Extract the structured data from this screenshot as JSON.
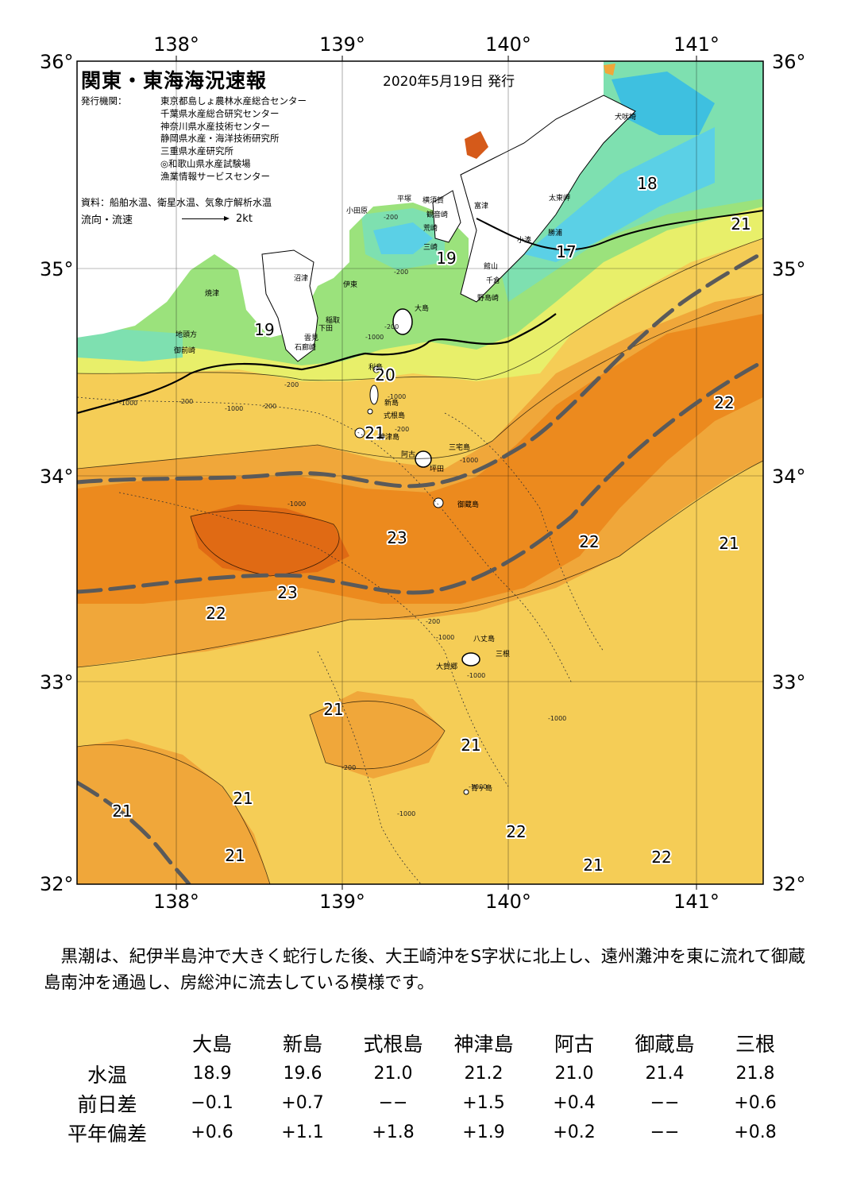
{
  "title": "関東・東海海況速報",
  "issue_date": "2020年5月19日 発行",
  "agencies_label": "発行機関：",
  "agencies": [
    "東京都島しょ農林水産総合センター",
    "千葉県水産総合研究センター",
    "神奈川県水産技術センター",
    "静岡県水産・海洋技術研究所",
    "三重県水産研究所",
    "◎和歌山県水産試験場",
    "漁業情報サービスセンター"
  ],
  "source": "資料：船舶水温、衛星水温、気象庁解析水温",
  "flow_label": "流向・流速",
  "flow_scale": "2kt",
  "lon_labels": [
    "138°",
    "139°",
    "140°",
    "141°"
  ],
  "lat_labels": [
    "36°",
    "35°",
    "34°",
    "33°",
    "32°"
  ],
  "colors": {
    "t17": "#5bd0e6",
    "t18": "#7ee0b0",
    "t19": "#9be27c",
    "t20": "#e8ef6a",
    "t21": "#f5cd56",
    "t22": "#f0a73a",
    "t23": "#ec8a1e",
    "t24": "#e06a14",
    "land": "#ffffff",
    "kuroshio": "#5a5a5a"
  },
  "isotherm_labels": [
    "18",
    "21",
    "17",
    "19",
    "19",
    "20",
    "21",
    "22",
    "23",
    "22",
    "21",
    "23",
    "22",
    "21",
    "21",
    "21",
    "22",
    "21",
    "21",
    "22",
    "21"
  ],
  "place_names": [
    "犬吠埼",
    "太東岬",
    "勝浦",
    "小湊",
    "館山",
    "千倉",
    "野島崎",
    "富津",
    "横須賀",
    "観音崎",
    "平塚",
    "小田原",
    "荒崎",
    "三崎",
    "大島",
    "沼津",
    "伊東",
    "焼津",
    "稲取",
    "下田",
    "雲見",
    "石廊崎",
    "地頭方",
    "御前崎",
    "利島",
    "新島",
    "式根島",
    "神津島",
    "三宅島",
    "阿古",
    "坪田",
    "御蔵島",
    "八丈島",
    "三根",
    "大賀郷",
    "青ヶ島"
  ],
  "depth_labels": [
    "-200",
    "-200",
    "-200",
    "-1000",
    "-200",
    "-1000",
    "-200",
    "-1000",
    "-200",
    "-1000",
    "-200",
    "-1000",
    "-1000",
    "-200",
    "-1000",
    "-1000",
    "-1000",
    "-200",
    "-1000",
    "-1000"
  ],
  "summary": "　黒潮は、紀伊半島沖で大きく蛇行した後、大王崎沖をS字状に北上し、遠州灘沖を東に流れて御蔵島南沖を通過し、房総沖に流去している模様です。",
  "table": {
    "columns": [
      "大島",
      "新島",
      "式根島",
      "神津島",
      "阿古",
      "御蔵島",
      "三根"
    ],
    "rows": [
      {
        "label": "水温",
        "values": [
          "18.9",
          "19.6",
          "21.0",
          "21.2",
          "21.0",
          "21.4",
          "21.8"
        ]
      },
      {
        "label": "前日差",
        "values": [
          "−0.1",
          "+0.7",
          "−−",
          "+1.5",
          "+0.4",
          "−−",
          "+0.6"
        ]
      },
      {
        "label": "平年偏差",
        "values": [
          "+0.6",
          "+1.1",
          "+1.8",
          "+1.9",
          "+0.2",
          "−−",
          "+0.8"
        ]
      }
    ]
  }
}
